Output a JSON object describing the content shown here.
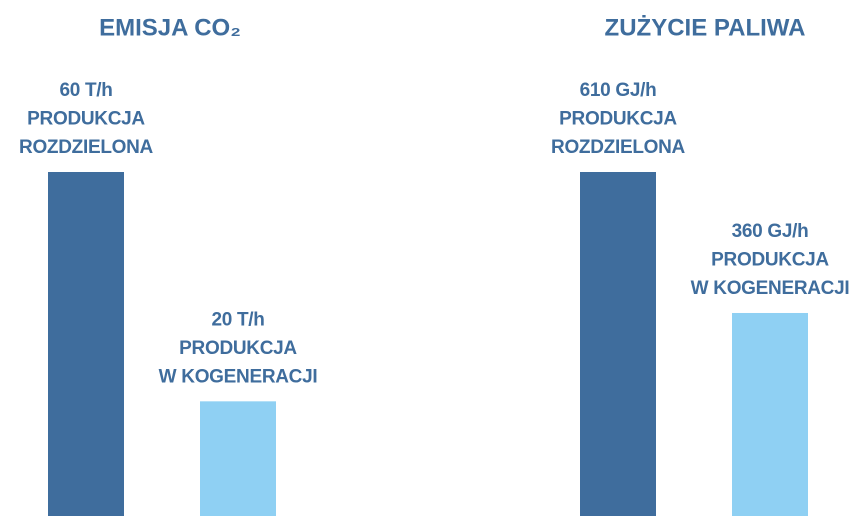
{
  "chart_data": [
    {
      "type": "bar",
      "title": "EMISJA CO₂",
      "categories": [
        [
          "PRODUKCJA",
          "ROZDZIELONA"
        ],
        [
          "PRODUKCJA",
          "W KOGENERACJI"
        ]
      ],
      "values": [
        60,
        20
      ],
      "value_labels": [
        "60 T/h",
        "20 T/h"
      ],
      "colors": [
        "#3f6d9d",
        "#8fd0f3"
      ]
    },
    {
      "type": "bar",
      "title": "ZUŻYCIE PALIWA",
      "categories": [
        [
          "PRODUKCJA",
          "ROZDZIELONA"
        ],
        [
          "PRODUKCJA",
          "W KOGENERACJI"
        ]
      ],
      "values": [
        610,
        360
      ],
      "value_labels": [
        "610 GJ/h",
        "360 GJ/h"
      ],
      "colors": [
        "#3f6d9d",
        "#8fd0f3"
      ]
    }
  ]
}
